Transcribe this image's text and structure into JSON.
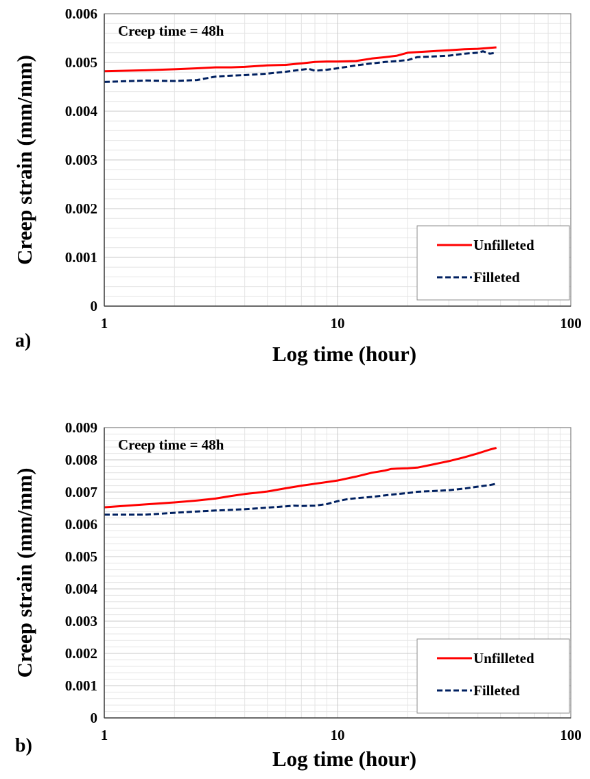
{
  "chart_data": [
    {
      "type": "line",
      "panel_label": "a)",
      "annotation": "Creep time = 48h",
      "xlabel": "Log time (hour)",
      "ylabel": "Creep strain (mm/mm)",
      "xscale": "log",
      "xlim": [
        1,
        100
      ],
      "ylim": [
        0,
        0.006
      ],
      "xticks": [
        1,
        10,
        100
      ],
      "xtick_labels": [
        "1",
        "10",
        "100"
      ],
      "yticks": [
        0,
        0.001,
        0.002,
        0.003,
        0.004,
        0.005,
        0.006
      ],
      "ytick_labels": [
        "0",
        "0.001",
        "0.002",
        "0.003",
        "0.004",
        "0.005",
        "0.006"
      ],
      "grid": true,
      "legend_position": "bottom-right",
      "series": [
        {
          "name": "Unfilleted",
          "color": "#ff0000",
          "style": "solid",
          "x": [
            1,
            1.5,
            2,
            2.5,
            3,
            3.5,
            4,
            5,
            6,
            7,
            8,
            9,
            10,
            12,
            14,
            16,
            18,
            20,
            25,
            30,
            35,
            40,
            45,
            48
          ],
          "y": [
            0.00482,
            0.00484,
            0.00486,
            0.00488,
            0.0049,
            0.0049,
            0.00491,
            0.00494,
            0.00495,
            0.00498,
            0.00501,
            0.00502,
            0.00502,
            0.00503,
            0.00508,
            0.00511,
            0.00514,
            0.0052,
            0.00523,
            0.00525,
            0.00527,
            0.00528,
            0.0053,
            0.00531
          ]
        },
        {
          "name": "Filleted",
          "color": "#002060",
          "style": "dashed",
          "x": [
            1,
            1.5,
            2,
            2.5,
            3,
            3.5,
            4,
            5,
            6,
            7,
            7.5,
            8,
            9,
            10,
            12,
            14,
            16,
            18,
            20,
            22,
            25,
            30,
            35,
            40,
            42,
            45,
            48
          ],
          "y": [
            0.0046,
            0.00463,
            0.00462,
            0.00464,
            0.00471,
            0.00473,
            0.00474,
            0.00477,
            0.00481,
            0.00485,
            0.00487,
            0.00483,
            0.00485,
            0.00488,
            0.00494,
            0.00498,
            0.00501,
            0.00503,
            0.00505,
            0.00511,
            0.00512,
            0.00514,
            0.00518,
            0.0052,
            0.00523,
            0.00518,
            0.0052
          ]
        }
      ]
    },
    {
      "type": "line",
      "panel_label": "b)",
      "annotation": "Creep time = 48h",
      "xlabel": "Log time (hour)",
      "ylabel": "Creep strain (mm/mm)",
      "xscale": "log",
      "xlim": [
        1,
        100
      ],
      "ylim": [
        0,
        0.009
      ],
      "xticks": [
        1,
        10,
        100
      ],
      "xtick_labels": [
        "1",
        "10",
        "100"
      ],
      "yticks": [
        0,
        0.001,
        0.002,
        0.003,
        0.004,
        0.005,
        0.006,
        0.007,
        0.008,
        0.009
      ],
      "ytick_labels": [
        "0",
        "0.001",
        "0.002",
        "0.003",
        "0.004",
        "0.005",
        "0.006",
        "0.007",
        "0.008",
        "0.009"
      ],
      "grid": true,
      "legend_position": "bottom-right",
      "series": [
        {
          "name": "Unfilleted",
          "color": "#ff0000",
          "style": "solid",
          "x": [
            1,
            1.5,
            2,
            2.5,
            3,
            3.5,
            4,
            5,
            6,
            7,
            8,
            9,
            10,
            12,
            14,
            16,
            17,
            18,
            20,
            22,
            25,
            30,
            35,
            40,
            45,
            48
          ],
          "y": [
            0.00653,
            0.00662,
            0.00668,
            0.00674,
            0.0068,
            0.00688,
            0.00694,
            0.00702,
            0.00712,
            0.0072,
            0.00726,
            0.00731,
            0.00736,
            0.00748,
            0.0076,
            0.00767,
            0.00772,
            0.00773,
            0.00774,
            0.00776,
            0.00784,
            0.00796,
            0.00808,
            0.0082,
            0.00832,
            0.00837
          ]
        },
        {
          "name": "Filleted",
          "color": "#002060",
          "style": "dashed",
          "x": [
            1,
            1.5,
            2,
            2.5,
            3,
            3.5,
            4,
            5,
            6,
            6.5,
            7,
            8,
            9,
            10,
            11,
            12,
            14,
            16,
            18,
            20,
            22,
            25,
            30,
            35,
            40,
            45,
            48
          ],
          "y": [
            0.0063,
            0.0063,
            0.00636,
            0.0064,
            0.00643,
            0.00645,
            0.00647,
            0.00652,
            0.00656,
            0.00658,
            0.00657,
            0.00658,
            0.00663,
            0.00672,
            0.00678,
            0.00681,
            0.00685,
            0.0069,
            0.00694,
            0.00697,
            0.00701,
            0.00703,
            0.00706,
            0.00711,
            0.00717,
            0.00722,
            0.00726
          ]
        }
      ]
    }
  ]
}
